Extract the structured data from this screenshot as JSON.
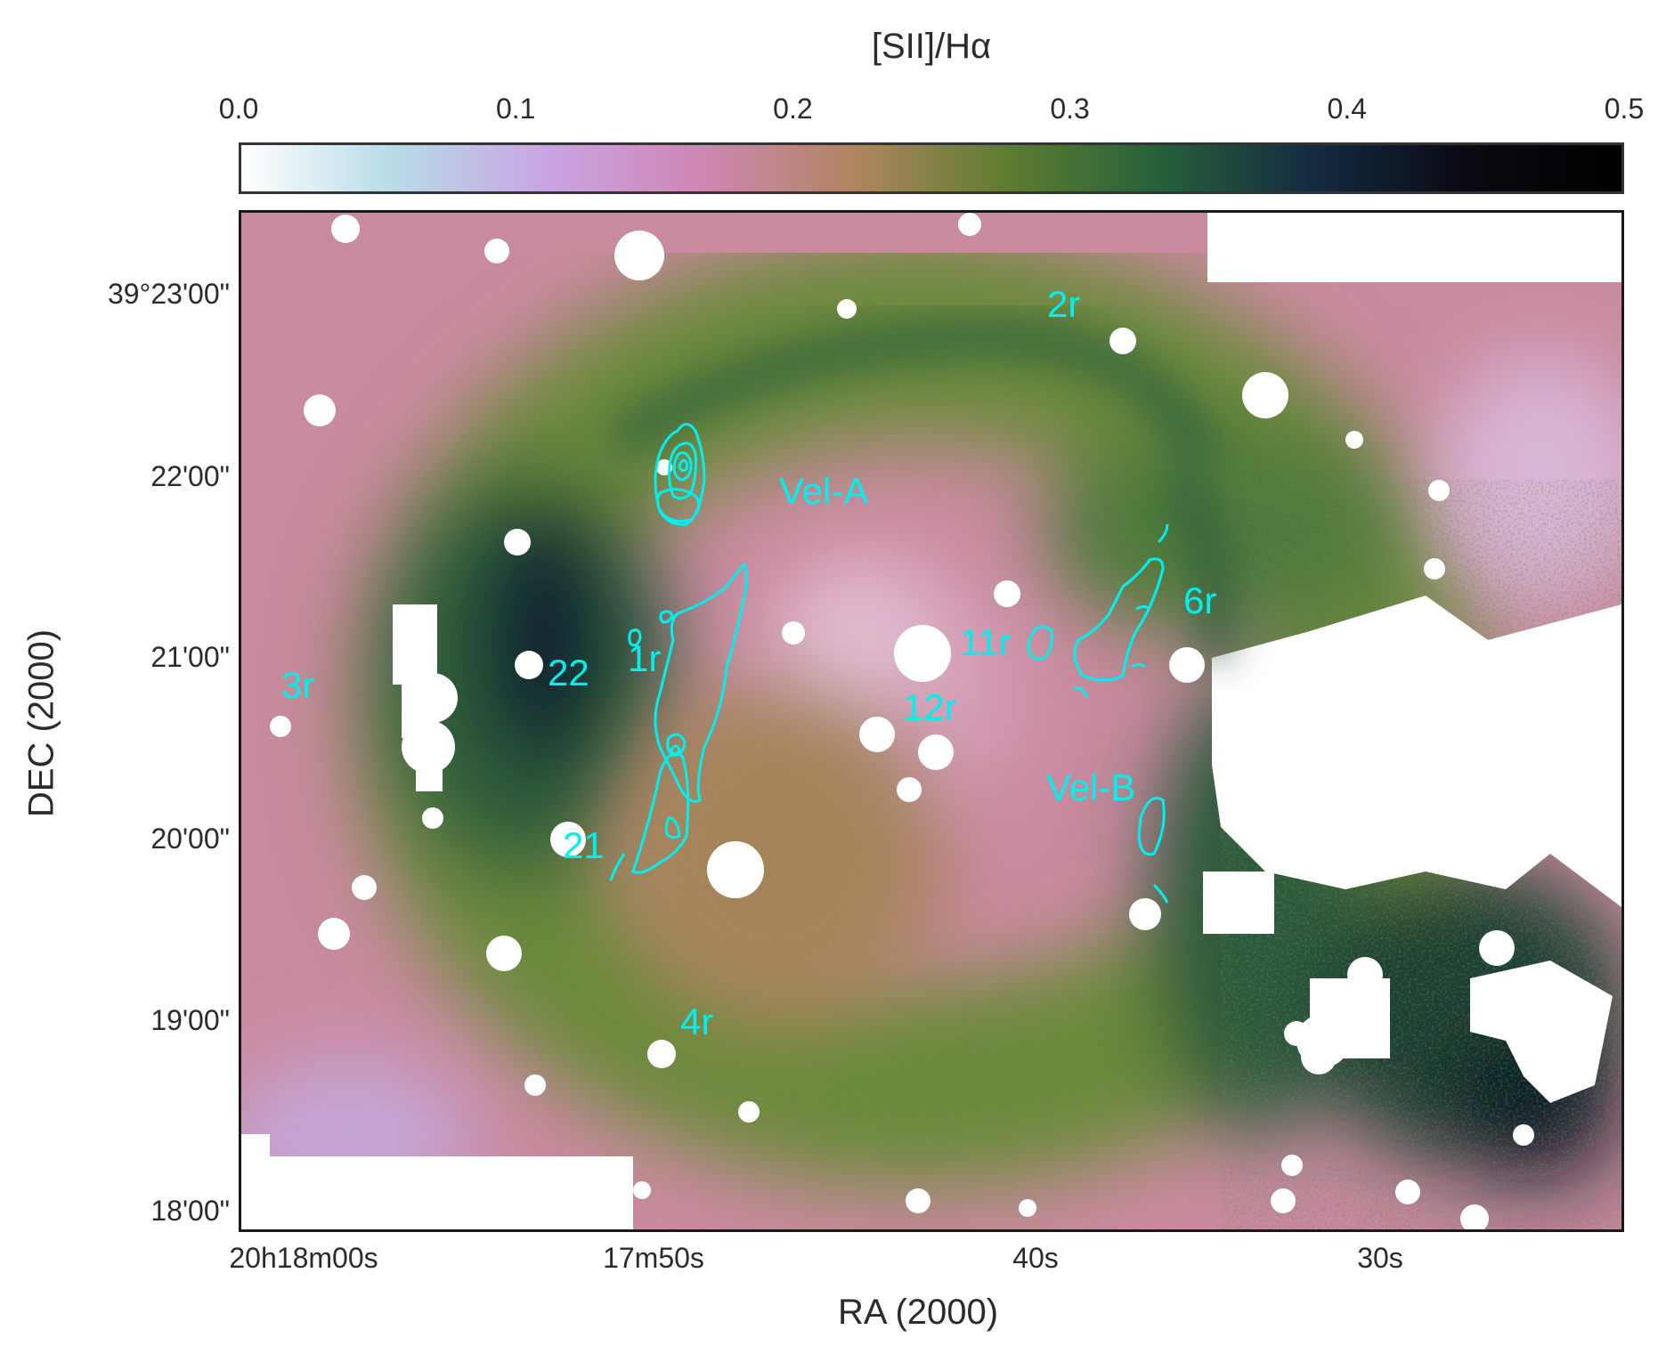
{
  "colorbar": {
    "title": "[SII]/Hα",
    "ticks": [
      "0.0",
      "0.1",
      "0.2",
      "0.3",
      "0.4",
      "0.5"
    ],
    "range": [
      0.0,
      0.5
    ],
    "colors": [
      "#ffffff",
      "#b7dbe6",
      "#c9a4e3",
      "#cf86b4",
      "#b08560",
      "#5d7d2f",
      "#26603b",
      "#142a40",
      "#0a0a12",
      "#000000"
    ]
  },
  "axes": {
    "xlabel": "RA (2000)",
    "ylabel": "DEC (2000)",
    "x_ticks": [
      "20h18m00s",
      "17m50s",
      "40s",
      "30s"
    ],
    "y_ticks": [
      "39°23'00\"",
      "22'00\"",
      "21'00\"",
      "20'00\"",
      "19'00\"",
      "18'00\""
    ]
  },
  "annotations": [
    "2r",
    "Vel-A",
    "6r",
    "11r",
    "1r",
    "22",
    "3r",
    "12r",
    "Vel-B",
    "21",
    "4r"
  ],
  "contour_color": "#00f0f0"
}
